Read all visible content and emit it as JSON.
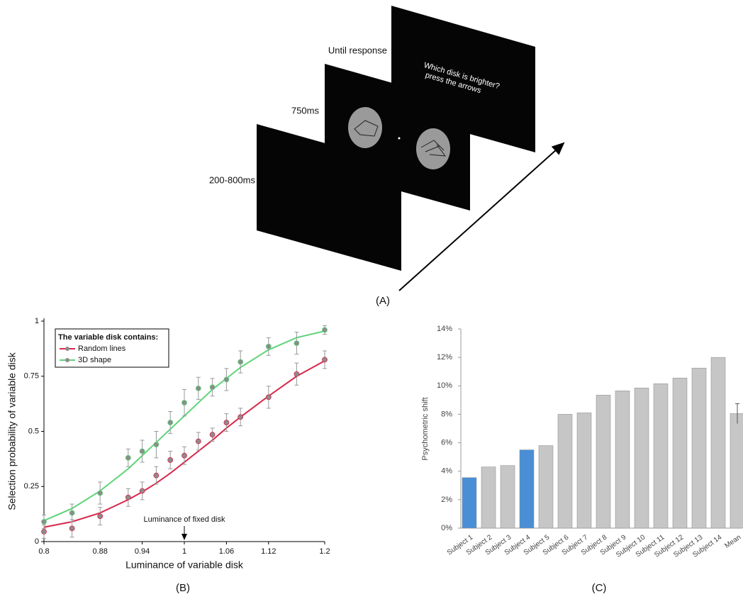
{
  "diagram": {
    "label": "(A)",
    "steps": [
      {
        "label": "200-800ms"
      },
      {
        "label": "750ms"
      },
      {
        "label": "Until response",
        "screen_text": [
          "Which disk is brighter?",
          "press the arrows"
        ]
      }
    ]
  },
  "chart_data": [
    {
      "type": "scatter",
      "panel": "(B)",
      "xlabel": "Luminance of variable disk",
      "ylabel": "Selection probability of variable disk",
      "legend_title": "The variable disk contains:",
      "legend": "upper left",
      "annotation": {
        "text": "Luminance of fixed disk",
        "x": 1
      },
      "x": [
        0.8,
        0.84,
        0.88,
        0.92,
        0.94,
        0.96,
        0.98,
        1,
        1.02,
        1.04,
        1.06,
        1.08,
        1.12,
        1.16,
        1.2
      ],
      "marker_color": "#8c8c8c",
      "series": [
        {
          "name": "Random lines",
          "color": "#d8284a",
          "values": [
            0.045,
            0.06,
            0.115,
            0.2,
            0.23,
            0.3,
            0.37,
            0.39,
            0.455,
            0.485,
            0.54,
            0.565,
            0.655,
            0.76,
            0.825
          ],
          "errors": [
            0.03,
            0.04,
            0.04,
            0.04,
            0.04,
            0.04,
            0.04,
            0.04,
            0.04,
            0.03,
            0.04,
            0.04,
            0.05,
            0.05,
            0.04
          ],
          "fit": [
            0.065,
            0.09,
            0.13,
            0.19,
            0.225,
            0.265,
            0.31,
            0.36,
            0.41,
            0.46,
            0.515,
            0.565,
            0.66,
            0.75,
            0.82
          ]
        },
        {
          "name": "3D shape",
          "color": "#5fd47a",
          "values": [
            0.09,
            0.13,
            0.22,
            0.38,
            0.41,
            0.44,
            0.54,
            0.63,
            0.695,
            0.7,
            0.735,
            0.815,
            0.885,
            0.9,
            0.96
          ],
          "errors": [
            0.03,
            0.04,
            0.05,
            0.04,
            0.05,
            0.06,
            0.05,
            0.06,
            0.05,
            0.04,
            0.05,
            0.05,
            0.04,
            0.05,
            0.02
          ],
          "fit": [
            0.095,
            0.15,
            0.23,
            0.33,
            0.39,
            0.45,
            0.51,
            0.57,
            0.63,
            0.69,
            0.74,
            0.79,
            0.87,
            0.925,
            0.955
          ]
        }
      ],
      "xlim": [
        0.8,
        1.2
      ],
      "xticks": [
        0.8,
        0.88,
        0.94,
        1,
        1.06,
        1.12,
        1.2
      ],
      "ylim": [
        0,
        1
      ],
      "yticks": [
        0,
        0.25,
        0.5,
        0.75,
        1
      ]
    },
    {
      "type": "bar",
      "panel": "(C)",
      "ylabel": "Psychometric shift",
      "categories": [
        "Subject 1",
        "Subject 2",
        "Subject 3",
        "Subject 4",
        "Subject 5",
        "Subject 6",
        "Subject 7",
        "Subject 8",
        "Subject 9",
        "Subject 10",
        "Subject 11",
        "Subject 12",
        "Subject 13",
        "Subject 14",
        "Mean"
      ],
      "values": [
        3.55,
        4.3,
        4.4,
        5.5,
        5.8,
        8.0,
        8.1,
        9.35,
        9.65,
        9.85,
        10.15,
        10.55,
        11.25,
        12.0,
        8.05
      ],
      "errors": [
        null,
        null,
        null,
        null,
        null,
        null,
        null,
        null,
        null,
        null,
        null,
        null,
        null,
        null,
        0.7
      ],
      "colors": [
        "#4a8fd6",
        "#c6c6c6",
        "#c6c6c6",
        "#4a8fd6",
        "#c6c6c6",
        "#c6c6c6",
        "#c6c6c6",
        "#c6c6c6",
        "#c6c6c6",
        "#c6c6c6",
        "#c6c6c6",
        "#c6c6c6",
        "#c6c6c6",
        "#c6c6c6",
        "#c6c6c6"
      ],
      "ylim": [
        0,
        14
      ],
      "yticks": [
        {
          "value": 0,
          "label": "0%"
        },
        {
          "value": 2,
          "label": "2%"
        },
        {
          "value": 4,
          "label": "4%"
        },
        {
          "value": 6,
          "label": "6%"
        },
        {
          "value": 8,
          "label": "8%"
        },
        {
          "value": 10,
          "label": "10%"
        },
        {
          "value": 12,
          "label": "12%"
        },
        {
          "value": 14,
          "label": "14%"
        }
      ]
    }
  ]
}
